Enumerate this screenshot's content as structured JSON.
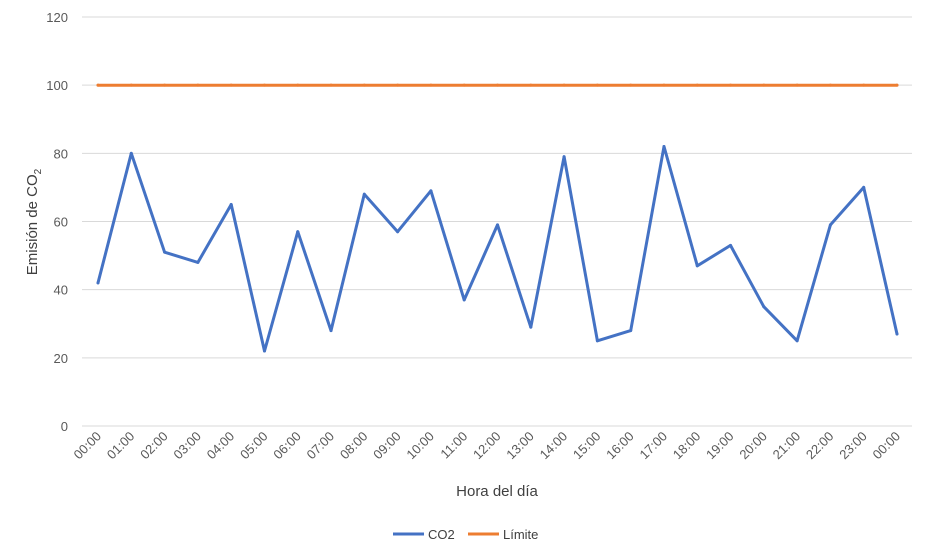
{
  "chart_data": {
    "type": "line",
    "categories": [
      "00:00",
      "01:00",
      "02:00",
      "03:00",
      "04:00",
      "05:00",
      "06:00",
      "07:00",
      "08:00",
      "09:00",
      "10:00",
      "11:00",
      "12:00",
      "13:00",
      "14:00",
      "15:00",
      "16:00",
      "17:00",
      "18:00",
      "19:00",
      "20:00",
      "21:00",
      "22:00",
      "23:00",
      "00:00"
    ],
    "series": [
      {
        "name": "CO2",
        "color": "#4472c4",
        "values": [
          42,
          80,
          51,
          48,
          65,
          22,
          57,
          28,
          68,
          57,
          69,
          37,
          59,
          29,
          79,
          25,
          28,
          82,
          47,
          53,
          35,
          25,
          59,
          70,
          27
        ]
      },
      {
        "name": "Límite",
        "color": "#ed7d31",
        "values": [
          100,
          100,
          100,
          100,
          100,
          100,
          100,
          100,
          100,
          100,
          100,
          100,
          100,
          100,
          100,
          100,
          100,
          100,
          100,
          100,
          100,
          100,
          100,
          100,
          100
        ]
      }
    ],
    "xlabel": "Hora del día",
    "ylabel_main": "Emisión de CO",
    "ylabel_sub": "2",
    "ylim": [
      0,
      120
    ],
    "yticks": [
      0,
      20,
      40,
      60,
      80,
      100,
      120
    ],
    "grid": true,
    "legend_position": "bottom"
  }
}
